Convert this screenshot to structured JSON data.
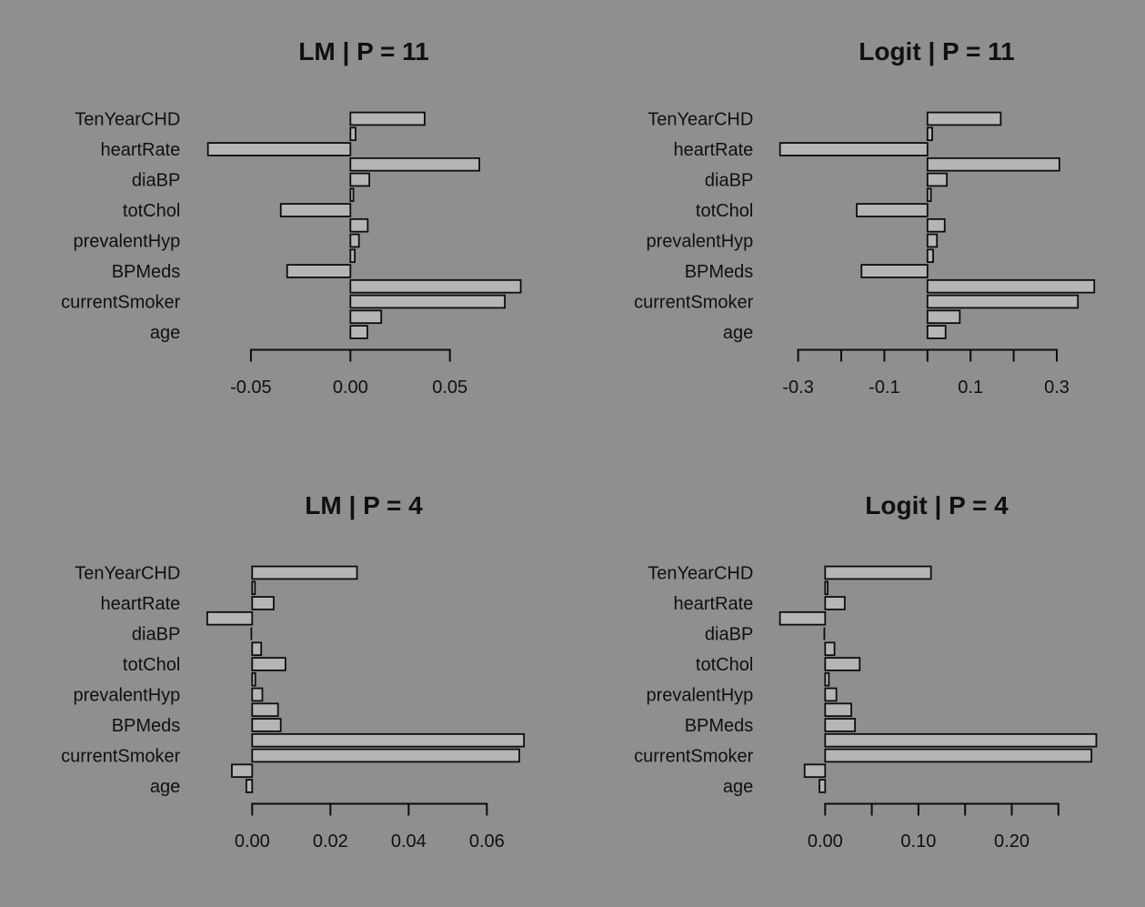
{
  "page": {
    "background_color": "#8f8f8f"
  },
  "style": {
    "bar_fill": "#b5b5b5",
    "bar_border": "#0d0d0d",
    "axis_color": "#0d0d0d",
    "text_color": "#101010"
  },
  "chart_data": [
    {
      "type": "bar",
      "orientation": "horizontal",
      "title": "LM | P = 11",
      "xlabel": "",
      "ylabel": "",
      "grid": false,
      "legend": "none",
      "categories": [
        "TenYearCHD",
        "heartRate",
        "diaBP",
        "totChol",
        "prevalentHyp",
        "BPMeds",
        "currentSmoker",
        "age"
      ],
      "series": [
        {
          "name": "labeled-bar",
          "values": [
            0.0373,
            -0.0716,
            0.0095,
            -0.035,
            0.0043,
            -0.0318,
            0.0776,
            0.0085
          ]
        },
        {
          "name": "companion-bar",
          "values": [
            0.0026,
            0.0648,
            0.0015,
            0.0087,
            0.0022,
            0.0856,
            0.0155,
            0
          ]
        }
      ],
      "xticks": [
        -0.05,
        0,
        0.05
      ],
      "xtick_labels": [
        "-0.05",
        "0.00",
        "0.05"
      ]
    },
    {
      "type": "bar",
      "orientation": "horizontal",
      "title": "Logit | P = 11",
      "xlabel": "",
      "ylabel": "",
      "grid": false,
      "legend": "none",
      "categories": [
        "TenYearCHD",
        "heartRate",
        "diaBP",
        "totChol",
        "prevalentHyp",
        "BPMeds",
        "currentSmoker",
        "age"
      ],
      "series": [
        {
          "name": "labeled-bar",
          "values": [
            0.17,
            -0.342,
            0.045,
            -0.164,
            0.022,
            -0.153,
            0.349,
            0.042
          ]
        },
        {
          "name": "companion-bar",
          "values": [
            0.011,
            0.306,
            0.008,
            0.04,
            0.013,
            0.387,
            0.075,
            0
          ]
        }
      ],
      "xticks": [
        -0.3,
        -0.2,
        -0.1,
        0,
        0.1,
        0.2,
        0.3
      ],
      "xtick_labels": [
        "-0.3",
        "",
        "-0.1",
        "",
        "0.1",
        "",
        "0.3"
      ]
    },
    {
      "type": "bar",
      "orientation": "horizontal",
      "title": "LM | P = 4",
      "xlabel": "",
      "ylabel": "",
      "grid": false,
      "legend": "none",
      "categories": [
        "TenYearCHD",
        "heartRate",
        "diaBP",
        "totChol",
        "prevalentHyp",
        "BPMeds",
        "currentSmoker",
        "age"
      ],
      "series": [
        {
          "name": "labeled-bar",
          "values": [
            0.0268,
            0.0055,
            -0.0002,
            0.0085,
            0.0026,
            0.0073,
            0.0683,
            -0.0015
          ]
        },
        {
          "name": "companion-bar",
          "values": [
            0.0007,
            -0.0115,
            0.0023,
            0.0008,
            0.0066,
            0.0695,
            -0.0052,
            0
          ]
        }
      ],
      "xticks": [
        0,
        0.02,
        0.04,
        0.06
      ],
      "xtick_labels": [
        "0.00",
        "0.02",
        "0.04",
        "0.06"
      ]
    },
    {
      "type": "bar",
      "orientation": "horizontal",
      "title": "Logit | P = 4",
      "xlabel": "",
      "ylabel": "",
      "grid": false,
      "legend": "none",
      "categories": [
        "TenYearCHD",
        "heartRate",
        "diaBP",
        "totChol",
        "prevalentHyp",
        "BPMeds",
        "currentSmoker",
        "age"
      ],
      "series": [
        {
          "name": "labeled-bar",
          "values": [
            0.1134,
            0.021,
            -0.0005,
            0.037,
            0.012,
            0.032,
            0.2854,
            -0.0061
          ]
        },
        {
          "name": "companion-bar",
          "values": [
            0.0027,
            -0.0484,
            0.01,
            0.004,
            0.028,
            0.2906,
            -0.022,
            0
          ]
        }
      ],
      "xticks": [
        0,
        0.05,
        0.1,
        0.15,
        0.2,
        0.25
      ],
      "xtick_labels": [
        "0.00",
        "",
        "0.10",
        "",
        "0.20",
        ""
      ]
    }
  ]
}
